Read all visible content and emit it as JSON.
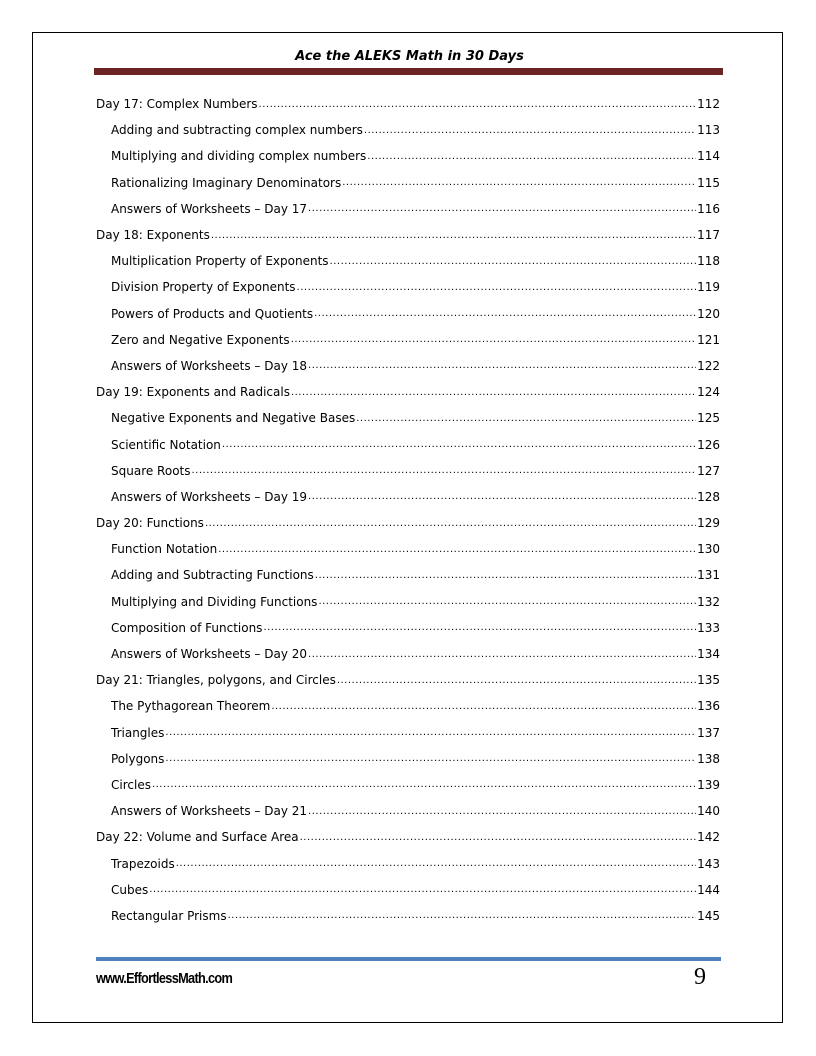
{
  "header": {
    "title": "Ace the ALEKS Math in 30 Days",
    "bar_color": "#6b2424"
  },
  "toc": [
    {
      "level": 1,
      "label": "Day 17:  Complex Numbers",
      "page": "112"
    },
    {
      "level": 2,
      "label": "Adding and subtracting complex numbers",
      "page": "113"
    },
    {
      "level": 2,
      "label": "Multiplying and dividing complex numbers",
      "page": "114"
    },
    {
      "level": 2,
      "label": "Rationalizing Imaginary Denominators",
      "page": "115"
    },
    {
      "level": 2,
      "label": "Answers of Worksheets – Day 17",
      "page": "116"
    },
    {
      "level": 1,
      "label": "Day 18:  Exponents",
      "page": "117"
    },
    {
      "level": 2,
      "label": "Multiplication Property of Exponents",
      "page": "118"
    },
    {
      "level": 2,
      "label": "Division Property of Exponents",
      "page": "119"
    },
    {
      "level": 2,
      "label": "Powers of Products and Quotients",
      "page": "120"
    },
    {
      "level": 2,
      "label": "Zero and Negative Exponents",
      "page": "121"
    },
    {
      "level": 2,
      "label": "Answers of Worksheets – Day 18",
      "page": "122"
    },
    {
      "level": 1,
      "label": "Day 19:  Exponents and Radicals",
      "page": "124"
    },
    {
      "level": 2,
      "label": "Negative Exponents and Negative Bases",
      "page": "125"
    },
    {
      "level": 2,
      "label": "Scientific Notation",
      "page": "126"
    },
    {
      "level": 2,
      "label": "Square Roots",
      "page": "127"
    },
    {
      "level": 2,
      "label": "Answers of Worksheets – Day 19",
      "page": "128"
    },
    {
      "level": 1,
      "label": "Day 20:  Functions",
      "page": "129"
    },
    {
      "level": 2,
      "label": "Function Notation",
      "page": "130"
    },
    {
      "level": 2,
      "label": "Adding and Subtracting Functions",
      "page": "131"
    },
    {
      "level": 2,
      "label": "Multiplying and Dividing Functions",
      "page": "132"
    },
    {
      "level": 2,
      "label": "Composition of Functions",
      "page": "133"
    },
    {
      "level": 2,
      "label": "Answers of Worksheets – Day 20",
      "page": "134"
    },
    {
      "level": 1,
      "label": "Day 21:  Triangles, polygons, and Circles",
      "page": "135"
    },
    {
      "level": 2,
      "label": "The Pythagorean Theorem",
      "page": "136"
    },
    {
      "level": 2,
      "label": "Triangles",
      "page": "137"
    },
    {
      "level": 2,
      "label": "Polygons",
      "page": "138"
    },
    {
      "level": 2,
      "label": "Circles",
      "page": "139"
    },
    {
      "level": 2,
      "label": "Answers of Worksheets – Day 21",
      "page": "140"
    },
    {
      "level": 1,
      "label": "Day 22:  Volume and Surface Area",
      "page": "142"
    },
    {
      "level": 2,
      "label": "Trapezoids",
      "page": "143"
    },
    {
      "level": 2,
      "label": "Cubes",
      "page": "144"
    },
    {
      "level": 2,
      "label": "Rectangular Prisms",
      "page": "145"
    }
  ],
  "footer": {
    "website": "www.EffortlessMath.com",
    "page_number": "9",
    "bar_color": "#4f81bd"
  }
}
